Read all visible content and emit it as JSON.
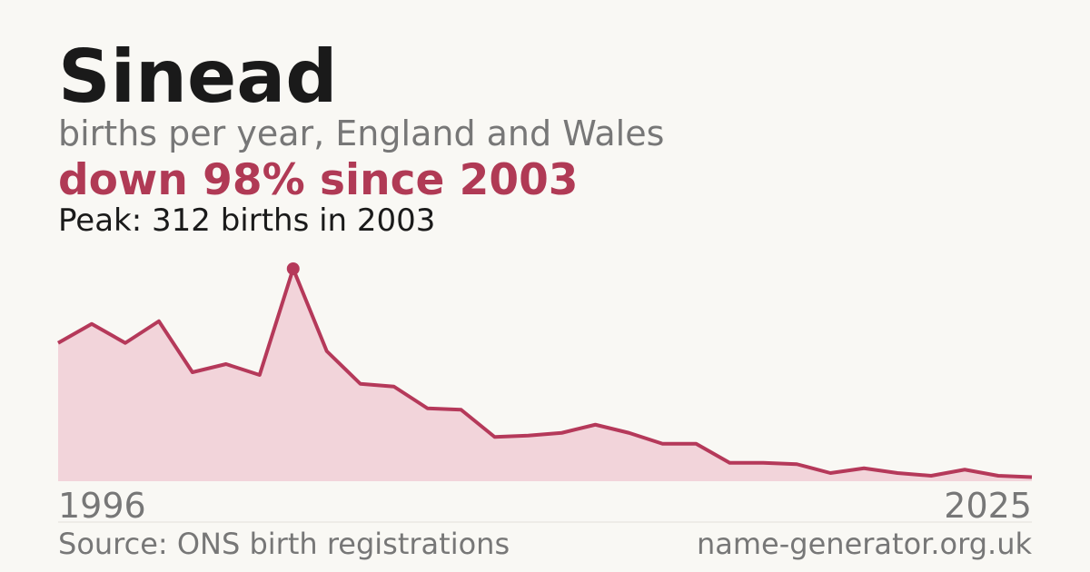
{
  "chart_data": {
    "type": "area",
    "title": "Sinead",
    "subtitle": "births per year, England and Wales",
    "headline": "down 98% since 2003",
    "annotation": "Peak: 312 births in 2003",
    "source": "Source: ONS birth registrations",
    "site": "name-generator.org.uk",
    "x": [
      1996,
      1997,
      1998,
      1999,
      2000,
      2001,
      2002,
      2003,
      2004,
      2005,
      2006,
      2007,
      2008,
      2009,
      2010,
      2011,
      2012,
      2013,
      2014,
      2015,
      2016,
      2017,
      2018,
      2019,
      2020,
      2021,
      2022,
      2023,
      2024,
      2025
    ],
    "values": [
      203,
      231,
      203,
      235,
      160,
      172,
      156,
      312,
      191,
      143,
      139,
      107,
      105,
      65,
      67,
      71,
      83,
      71,
      55,
      55,
      27,
      27,
      25,
      12,
      19,
      12,
      8,
      17,
      8,
      6
    ],
    "peak_index": 7,
    "color": "#b5395a",
    "fill_color": "#f2d4da",
    "xlim": [
      1996,
      2025
    ],
    "ylim": [
      0,
      312
    ]
  }
}
